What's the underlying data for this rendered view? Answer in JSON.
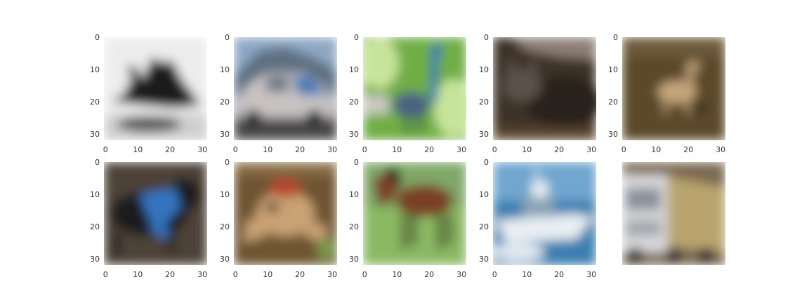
{
  "figure": {
    "axis_ticks": {
      "x": [
        "0",
        "10",
        "20",
        "30"
      ],
      "y": [
        "0",
        "10",
        "20",
        "30"
      ]
    },
    "panels": [
      {
        "subject": "airplane",
        "colors": {
          "background": "#ededed",
          "subject": "#1c1c1c",
          "shadow": "#5a5a5a"
        }
      },
      {
        "subject": "automobile",
        "colors": {
          "sky": "#8fa7c4",
          "hill": "#5d6f82",
          "ground": "#4a4a4a",
          "body": "#c8c2c2",
          "accent": "#4d7bb5"
        }
      },
      {
        "subject": "bird",
        "colors": {
          "background": "#6fae45",
          "light": "#c7e59a",
          "body": "#4b6283",
          "neck": "#2e76b8"
        }
      },
      {
        "subject": "cat",
        "colors": {
          "background": "#3d3127",
          "top": "#8d7f75",
          "body": "#2a241f",
          "head": "#5b5148"
        }
      },
      {
        "subject": "deer",
        "colors": {
          "background": "#5b4a2c",
          "body": "#c4a67a",
          "dark": "#3d3220"
        }
      },
      {
        "subject": "dog",
        "colors": {
          "background": "#4e4338",
          "body": "#1f1c1c",
          "harness": "#3675c0"
        }
      },
      {
        "subject": "frog",
        "colors": {
          "background": "#6f5533",
          "body": "#c9a274",
          "dark": "#3f2f1c",
          "accent": "#b5462f"
        }
      },
      {
        "subject": "horse",
        "colors": {
          "sky": "#7fa867",
          "grass": "#8bb963",
          "body": "#7a4126",
          "mane": "#2e1f19"
        }
      },
      {
        "subject": "ship",
        "colors": {
          "sky": "#6fa6cf",
          "water": "#3a7fb0",
          "hull": "#e8eef3",
          "cabin": "#8aa1b5"
        }
      },
      {
        "subject": "truck",
        "colors": {
          "background": "#7b6b53",
          "cab": "#d9d9dc",
          "trailer": "#b9a46e",
          "dark": "#2e2e2e"
        }
      }
    ]
  }
}
